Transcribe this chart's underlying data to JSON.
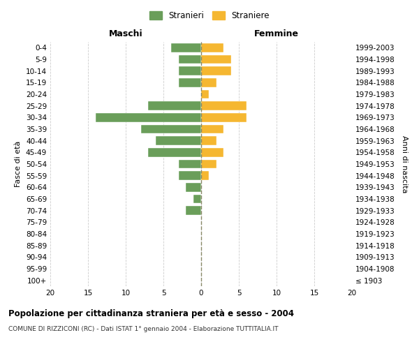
{
  "age_groups": [
    "100+",
    "95-99",
    "90-94",
    "85-89",
    "80-84",
    "75-79",
    "70-74",
    "65-69",
    "60-64",
    "55-59",
    "50-54",
    "45-49",
    "40-44",
    "35-39",
    "30-34",
    "25-29",
    "20-24",
    "15-19",
    "10-14",
    "5-9",
    "0-4"
  ],
  "birth_years": [
    "≤ 1903",
    "1904-1908",
    "1909-1913",
    "1914-1918",
    "1919-1923",
    "1924-1928",
    "1929-1933",
    "1934-1938",
    "1939-1943",
    "1944-1948",
    "1949-1953",
    "1954-1958",
    "1959-1963",
    "1964-1968",
    "1969-1973",
    "1974-1978",
    "1979-1983",
    "1984-1988",
    "1989-1993",
    "1994-1998",
    "1999-2003"
  ],
  "maschi": [
    0,
    0,
    0,
    0,
    0,
    0,
    2,
    1,
    2,
    3,
    3,
    7,
    6,
    8,
    14,
    7,
    0,
    3,
    3,
    3,
    4
  ],
  "femmine": [
    0,
    0,
    0,
    0,
    0,
    0,
    0,
    0,
    0,
    1,
    2,
    3,
    2,
    3,
    6,
    6,
    1,
    2,
    4,
    4,
    3
  ],
  "maschi_color": "#6a9e5a",
  "femmine_color": "#f5b731",
  "background_color": "#ffffff",
  "grid_color": "#cccccc",
  "title": "Popolazione per cittadinanza straniera per età e sesso - 2004",
  "subtitle": "COMUNE DI RIZZICONI (RC) - Dati ISTAT 1° gennaio 2004 - Elaborazione TUTTITALIA.IT",
  "xlabel_left": "Maschi",
  "xlabel_right": "Femmine",
  "ylabel_left": "Fasce di età",
  "ylabel_right": "Anni di nascita",
  "legend_stranieri": "Stranieri",
  "legend_straniere": "Straniere",
  "xlim": 20
}
